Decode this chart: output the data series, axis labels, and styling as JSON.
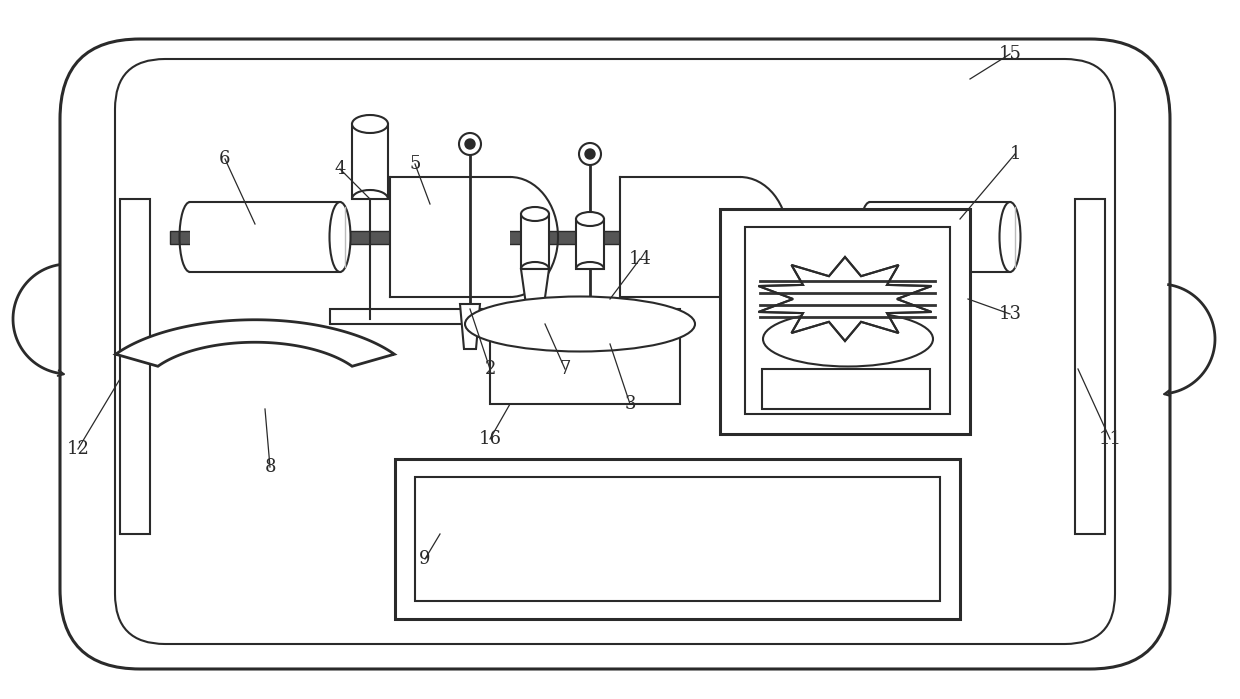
{
  "bg_color": "#ffffff",
  "line_color": "#2a2a2a",
  "figsize": [
    12.4,
    6.99
  ],
  "dpi": 100,
  "lw_main": 1.5,
  "lw_thick": 2.2,
  "lw_thin": 1.0
}
